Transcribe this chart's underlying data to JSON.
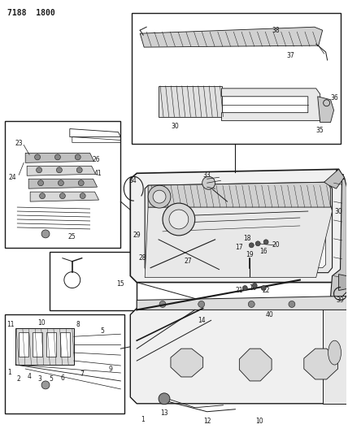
{
  "bg_color": "#ffffff",
  "line_color": "#1a1a1a",
  "header": "7188 1800",
  "fig_width": 4.28,
  "fig_height": 5.33,
  "dpi": 100
}
